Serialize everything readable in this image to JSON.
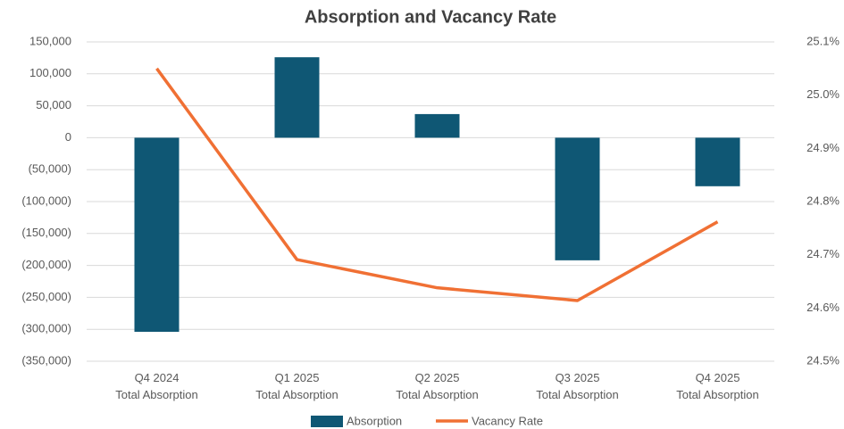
{
  "chart_data": {
    "type": "bar-line",
    "title": "Absorption and Vacancy Rate",
    "categories": [
      "Q4 2024\nTotal Absorption",
      "Q1 2025\nTotal Absorption",
      "Q2 2025\nTotal Absorption",
      "Q3 2025\nTotal Absorption",
      "Q4 2025\nTotal Absorption"
    ],
    "series": [
      {
        "name": "Absorption",
        "type": "bar",
        "color": "#0f5774",
        "values": [
          -304000,
          126000,
          37000,
          -192000,
          -76000
        ]
      },
      {
        "name": "Vacancy Rate",
        "type": "line",
        "axis": "y2",
        "color": "#f07034",
        "values": [
          25.05,
          24.691,
          24.638,
          24.614,
          24.762
        ]
      }
    ],
    "ylim": [
      -350000,
      150000
    ],
    "yticks": [
      {
        "value": -350000,
        "label": "(350,000)"
      },
      {
        "value": -300000,
        "label": "(300,000)"
      },
      {
        "value": -250000,
        "label": "(250,000)"
      },
      {
        "value": -200000,
        "label": "(200,000)"
      },
      {
        "value": -150000,
        "label": "(150,000)"
      },
      {
        "value": -100000,
        "label": "(100,000)"
      },
      {
        "value": -50000,
        "label": "(50,000)"
      },
      0,
      {
        "value": 50000,
        "label": "50,000"
      },
      {
        "value": 100000,
        "label": "100,000"
      },
      {
        "value": 150000,
        "label": "150,000"
      }
    ],
    "y2lim": [
      24.5,
      25.1
    ],
    "y2ticks": [
      {
        "value": 24.5,
        "label": "24.5%"
      },
      {
        "value": 24.6,
        "label": "24.6%"
      },
      {
        "value": 24.7,
        "label": "24.7%"
      },
      {
        "value": 24.8,
        "label": "24.8%"
      },
      {
        "value": 24.9,
        "label": "24.9%"
      },
      {
        "value": 25.0,
        "label": "25.0%"
      },
      {
        "value": 25.1,
        "label": "25.1%"
      }
    ],
    "grid": true,
    "legend": "bottom"
  }
}
